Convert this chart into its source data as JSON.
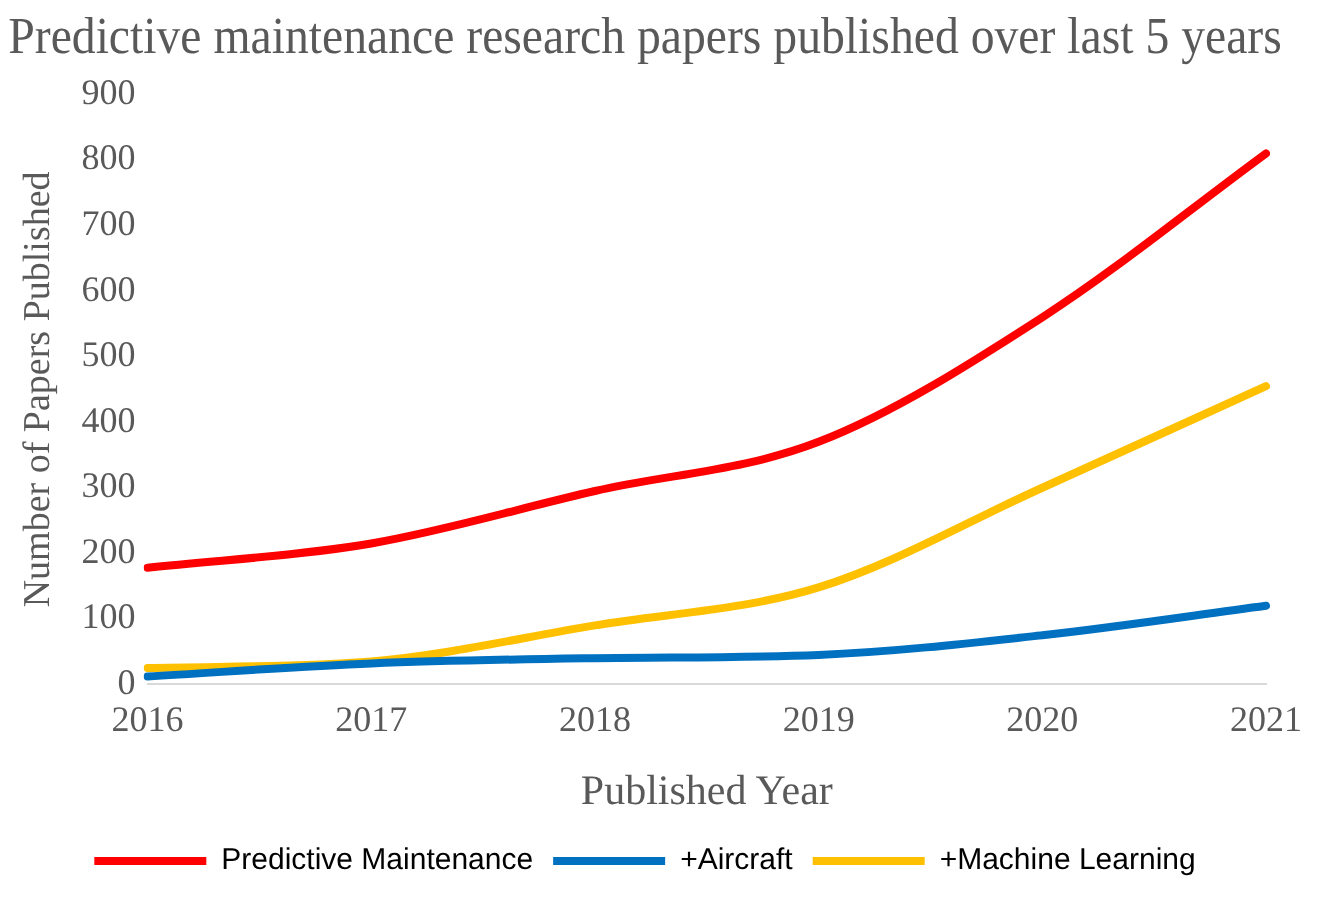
{
  "chart_data": {
    "type": "line",
    "title": "Predictive maintenance research papers published over last 5 years",
    "xlabel": "Published Year",
    "ylabel": "Number of Papers Published",
    "categories": [
      "2016",
      "2017",
      "2018",
      "2019",
      "2020",
      "2021"
    ],
    "series": [
      {
        "name": "Predictive Maintenance",
        "color": "#ff0000",
        "values": [
          178,
          215,
          295,
          370,
          560,
          810
        ]
      },
      {
        "name": "+Aircraft",
        "color": "#0070c0",
        "values": [
          12,
          32,
          40,
          45,
          75,
          120
        ]
      },
      {
        "name": "+Machine Learning",
        "color": "#ffc000",
        "values": [
          25,
          35,
          90,
          148,
          300,
          455
        ]
      }
    ],
    "ylim": [
      0,
      900
    ],
    "yticks": [
      0,
      100,
      200,
      300,
      400,
      500,
      600,
      700,
      800,
      900
    ],
    "grid": false,
    "legend": "bottom",
    "marker": "none",
    "line_style": "solid"
  }
}
